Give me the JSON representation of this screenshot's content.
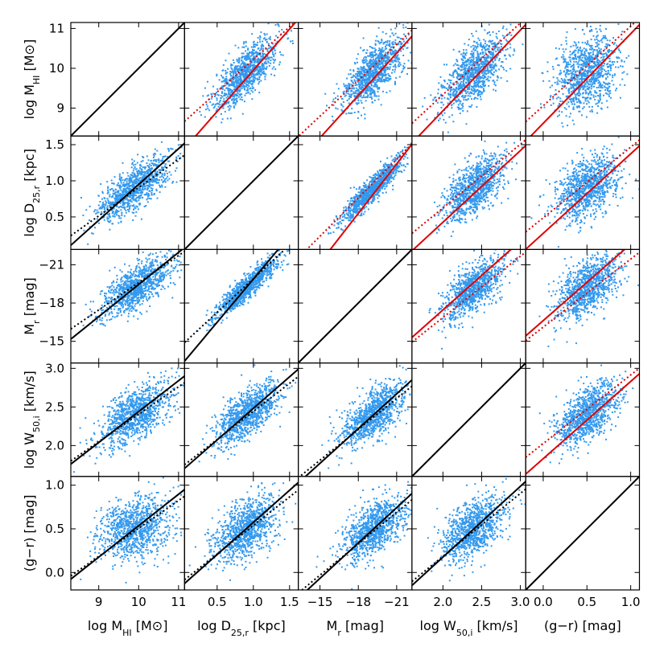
{
  "chart_data": {
    "type": "scatter",
    "title": "",
    "grid": false,
    "point_color": "#3399ee",
    "fit_color_red": "#e00000",
    "fit_color_black": "#000000",
    "variables": [
      {
        "key": "mhi",
        "range": [
          8.3,
          11.15
        ],
        "ticks": [
          9,
          10,
          11
        ],
        "tick_labels": [
          "9",
          "10",
          "11"
        ],
        "y_label": [
          "log M",
          "HI",
          " [M⊙]"
        ],
        "x_label": [
          "log M",
          "HI",
          " [M⊙]"
        ],
        "mean": 9.9,
        "std": 0.45
      },
      {
        "key": "d25",
        "range": [
          0.05,
          1.62
        ],
        "ticks": [
          0.5,
          1.0,
          1.5
        ],
        "tick_labels": [
          "0.5",
          "1.0",
          "1.5"
        ],
        "y_label": [
          "log D",
          "25,r",
          " [kpc]"
        ],
        "x_label": [
          "log D",
          "25,r",
          " [kpc]"
        ],
        "mean": 0.9,
        "std": 0.22
      },
      {
        "key": "mr",
        "range": [
          -22.2,
          -13.3
        ],
        "reversed": true,
        "ticks": [
          -21,
          -18,
          -15
        ],
        "tick_labels": [
          "−21",
          "−18",
          "−15"
        ],
        "y_label": [
          "M",
          "r",
          " [mag]"
        ],
        "x_label": [
          "M",
          "r",
          " [mag]"
        ],
        "mean": -19.2,
        "std": 1.2
      },
      {
        "key": "w50",
        "range": [
          1.6,
          3.07
        ],
        "ticks": [
          2.0,
          2.5,
          3.0
        ],
        "tick_labels": [
          "2.0",
          "2.5",
          "3.0"
        ],
        "y_label": [
          "log W",
          "50,i",
          " [km/s]"
        ],
        "x_label": [
          "log W",
          "50,i",
          " [km/s]"
        ],
        "mean": 2.4,
        "std": 0.2
      },
      {
        "key": "gr",
        "range": [
          -0.2,
          1.1
        ],
        "ticks": [
          0.0,
          0.5,
          1.0
        ],
        "tick_labels": [
          "0.0",
          "0.5",
          "1.0"
        ],
        "y_label": [
          "(g−r)",
          "",
          " [mag]"
        ],
        "x_label": [
          "(g−r)",
          "",
          " [mag]"
        ],
        "mean": 0.5,
        "std": 0.18
      }
    ],
    "correlation_matrix": [
      [
        1.0,
        0.75,
        -0.7,
        0.6,
        0.3
      ],
      [
        0.75,
        1.0,
        -0.92,
        0.65,
        0.45
      ],
      [
        -0.7,
        -0.92,
        1.0,
        -0.65,
        -0.55
      ],
      [
        0.6,
        0.65,
        -0.65,
        1.0,
        0.55
      ],
      [
        0.3,
        0.45,
        -0.55,
        0.55,
        1.0
      ]
    ],
    "n_points_per_panel": 1000,
    "layout": "5x5 scatter-plot matrix; diagonal panels show identity line; upper triangle shows red solid and red dotted fit lines; lower triangle shows black solid and black dotted fit lines"
  }
}
